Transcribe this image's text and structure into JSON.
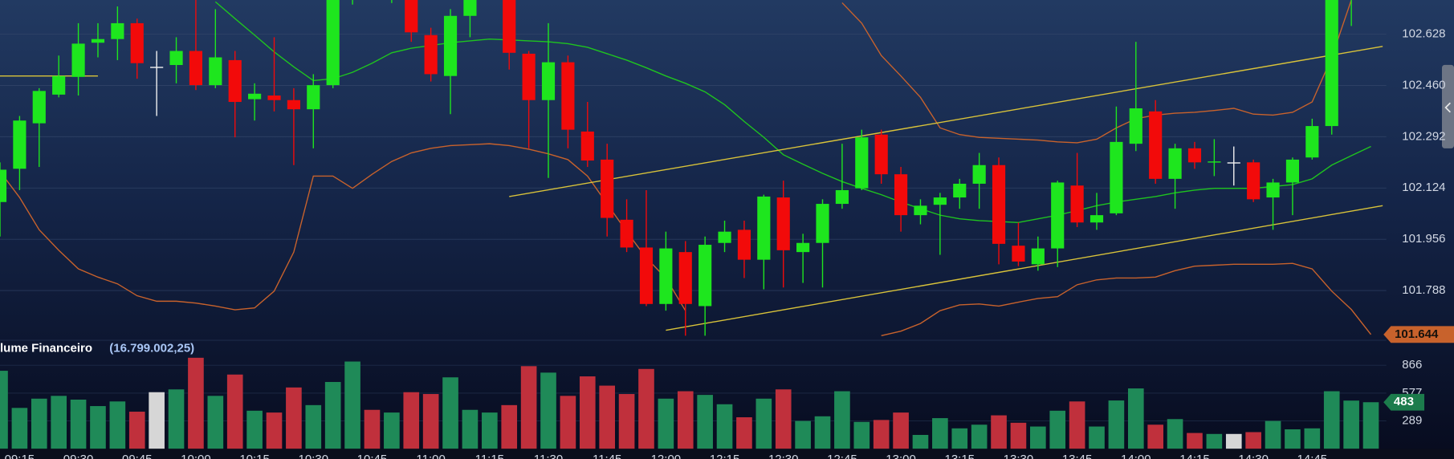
{
  "chart_data": {
    "type": "candlestick",
    "categories": [
      null,
      "09:15",
      null,
      null,
      "09:30",
      null,
      null,
      "09:45",
      null,
      null,
      "10:00",
      null,
      null,
      "10:15",
      null,
      null,
      "10:30",
      null,
      null,
      "10:45",
      null,
      null,
      "11:00",
      null,
      null,
      "11:15",
      null,
      null,
      "11:30",
      null,
      null,
      "11:45",
      null,
      null,
      "12:00",
      null,
      null,
      "12:15",
      null,
      null,
      "12:30",
      null,
      null,
      "12:45",
      null,
      null,
      "13:00",
      null,
      null,
      "13:15",
      null,
      null,
      "13:30",
      null,
      null,
      "13:45",
      null,
      null,
      "14:00",
      null,
      null,
      "14:15",
      null,
      null,
      "14:30",
      null,
      null,
      "14:45",
      null,
      null,
      null
    ],
    "open": [
      102.078,
      102.187,
      102.336,
      102.43,
      102.488,
      102.6,
      102.612,
      102.664,
      102.521,
      102.527,
      102.573,
      102.461,
      102.543,
      102.415,
      102.427,
      102.412,
      102.382,
      102.461,
      102.78,
      102.85,
      102.76,
      102.76,
      102.625,
      102.491,
      102.688,
      102.75,
      102.77,
      102.564,
      102.412,
      102.536,
      102.309,
      102.217,
      102.02,
      101.929,
      101.744,
      101.914,
      101.737,
      101.944,
      101.987,
      101.889,
      102.093,
      101.914,
      101.944,
      102.072,
      102.123,
      102.299,
      102.169,
      102.035,
      102.069,
      102.093,
      102.138,
      102.199,
      101.935,
      101.874,
      101.926,
      102.132,
      102.011,
      102.041,
      102.269,
      102.375,
      102.154,
      102.254,
      102.208,
      102.208,
      102.208,
      102.093,
      102.142,
      102.224,
      102.327,
      102.76,
      102.82
    ],
    "high": [
      102.208,
      102.36,
      102.451,
      102.558,
      102.664,
      102.664,
      102.719,
      102.679,
      102.573,
      102.618,
      102.74,
      102.71,
      102.573,
      102.467,
      102.618,
      102.451,
      102.497,
      102.8,
      102.86,
      102.88,
      102.83,
      102.79,
      102.649,
      102.71,
      102.78,
      102.82,
      102.8,
      102.573,
      102.664,
      102.558,
      102.406,
      102.269,
      102.087,
      102.117,
      101.981,
      101.95,
      101.965,
      102.017,
      102.017,
      102.102,
      102.148,
      101.974,
      102.087,
      102.269,
      102.315,
      102.315,
      102.193,
      102.087,
      102.108,
      102.154,
      102.239,
      102.224,
      102.011,
      101.965,
      102.148,
      102.239,
      102.108,
      102.391,
      102.603,
      102.412,
      102.269,
      102.275,
      102.284,
      102.26,
      102.217,
      102.154,
      102.224,
      102.351,
      102.78,
      102.86,
      102.9
    ],
    "low": [
      101.965,
      102.117,
      102.193,
      102.421,
      102.427,
      102.552,
      102.543,
      102.482,
      102.36,
      102.467,
      102.445,
      102.451,
      102.29,
      102.345,
      102.375,
      102.199,
      102.254,
      102.451,
      102.725,
      102.76,
      102.73,
      102.603,
      102.473,
      102.366,
      102.618,
      102.74,
      102.512,
      102.254,
      102.157,
      102.254,
      102.193,
      101.965,
      101.914,
      101.737,
      101.722,
      101.64,
      101.64,
      101.914,
      101.829,
      101.792,
      101.798,
      101.813,
      101.798,
      102.056,
      102.117,
      102.138,
      101.981,
      102.005,
      101.905,
      102.056,
      102.056,
      101.874,
      101.868,
      101.853,
      101.865,
      101.996,
      101.987,
      102.035,
      102.245,
      102.138,
      102.056,
      102.187,
      102.163,
      102.132,
      102.078,
      101.987,
      102.035,
      102.217,
      102.299,
      102.655,
      102.79
    ],
    "close": [
      102.184,
      102.345,
      102.442,
      102.491,
      102.597,
      102.612,
      102.664,
      102.533,
      102.521,
      102.573,
      102.461,
      102.552,
      102.406,
      102.433,
      102.412,
      102.382,
      102.461,
      102.78,
      102.84,
      102.79,
      102.8,
      102.634,
      102.497,
      102.688,
      102.75,
      102.79,
      102.567,
      102.412,
      102.536,
      102.315,
      102.214,
      102.026,
      101.929,
      101.744,
      101.926,
      101.744,
      101.938,
      101.981,
      101.889,
      102.096,
      101.92,
      101.944,
      102.072,
      102.117,
      102.29,
      102.169,
      102.035,
      102.066,
      102.093,
      102.138,
      102.199,
      101.941,
      101.883,
      101.926,
      102.142,
      102.011,
      102.035,
      102.275,
      102.385,
      102.154,
      102.254,
      102.208,
      102.211,
      102.208,
      102.087,
      102.142,
      102.217,
      102.327,
      102.76,
      102.82,
      102.87
    ],
    "up_color": "#1ee61e",
    "down_color": "#f20a0a",
    "doji_color": "#f2f2f2",
    "ylim": [
      101.631,
      102.74
    ],
    "yticks": [
      102.628,
      {
        "value": 102.46,
        "label": "102.460"
      },
      102.292,
      102.124,
      101.956,
      101.788
    ],
    "grid": true,
    "overlays": [
      {
        "color": "#1fc41f",
        "values": [
          null,
          null,
          null,
          null,
          null,
          null,
          null,
          null,
          null,
          null,
          null,
          102.734,
          102.679,
          102.625,
          102.57,
          102.521,
          102.476,
          102.482,
          102.503,
          102.533,
          102.567,
          102.582,
          102.591,
          102.6,
          102.606,
          102.612,
          102.609,
          102.606,
          102.603,
          102.597,
          102.585,
          102.564,
          102.543,
          102.518,
          102.491,
          102.467,
          102.439,
          102.397,
          102.342,
          102.29,
          102.233,
          102.202,
          102.172,
          102.145,
          102.123,
          102.102,
          102.078,
          102.056,
          102.035,
          102.023,
          102.017,
          102.014,
          102.011,
          102.023,
          102.035,
          102.05,
          102.066,
          102.078,
          102.087,
          102.096,
          102.108,
          102.117,
          102.123,
          102.123,
          102.123,
          102.129,
          102.135,
          102.154,
          102.199,
          102.23,
          102.26
        ]
      },
      {
        "color": "#c8622c",
        "values": [
          null,
          null,
          null,
          null,
          null,
          null,
          null,
          null,
          null,
          null,
          null,
          null,
          null,
          null,
          null,
          null,
          null,
          null,
          null,
          null,
          null,
          null,
          null,
          null,
          null,
          null,
          null,
          null,
          null,
          null,
          null,
          null,
          null,
          null,
          null,
          null,
          null,
          null,
          null,
          null,
          null,
          null,
          null,
          102.731,
          102.664,
          102.558,
          102.491,
          102.421,
          102.321,
          102.299,
          102.29,
          102.287,
          102.284,
          102.281,
          102.275,
          102.272,
          102.284,
          102.321,
          102.351,
          102.363,
          102.369,
          102.372,
          102.378,
          102.385,
          102.366,
          102.363,
          102.372,
          102.406,
          102.552,
          102.74,
          null
        ]
      },
      {
        "color": "#c8622c",
        "values": [
          102.178,
          102.093,
          101.987,
          101.92,
          101.859,
          101.832,
          101.81,
          101.771,
          101.753,
          101.753,
          101.747,
          101.737,
          101.725,
          101.731,
          101.786,
          101.914,
          102.163,
          102.163,
          102.123,
          102.169,
          102.211,
          102.239,
          102.254,
          102.263,
          102.266,
          102.269,
          102.263,
          102.251,
          102.236,
          102.217,
          102.163,
          102.072,
          101.981,
          101.895,
          101.829,
          101.722,
          null,
          null,
          null,
          null,
          null,
          null,
          null,
          null,
          null,
          101.64,
          101.655,
          101.68,
          101.722,
          101.741,
          101.744,
          101.737,
          101.75,
          101.762,
          101.768,
          101.807,
          101.823,
          101.829,
          101.829,
          101.832,
          101.853,
          101.868,
          101.871,
          101.874,
          101.874,
          101.874,
          101.877,
          101.859,
          101.786,
          101.726,
          101.644
        ]
      }
    ],
    "trendlines": [
      {
        "color": "#d9c33a",
        "x": [
          26,
          70.6
        ],
        "values": [
          102.096,
          102.588
        ]
      },
      {
        "color": "#d9c33a",
        "x": [
          34,
          70.6
        ],
        "values": [
          101.658,
          102.066
        ]
      },
      {
        "color": "#d9c33a",
        "x": [
          0,
          5
        ],
        "values": [
          102.491,
          102.491
        ]
      }
    ],
    "volume": {
      "title": "lume Financeiro",
      "total": "(16.799.002,25)",
      "up_color": "#1f8a58",
      "down_color": "#c0303c",
      "doji_color": "#d6d6d6",
      "values": [
        809,
        424,
        520,
        549,
        510,
        443,
        491,
        385,
        587,
        616,
        944,
        549,
        770,
        395,
        376,
        636,
        453,
        693,
        905,
        404,
        376,
        587,
        568,
        741,
        404,
        376,
        453,
        857,
        790,
        549,
        751,
        655,
        568,
        828,
        520,
        597,
        559,
        462,
        327,
        520,
        616,
        289,
        337,
        597,
        279,
        299,
        376,
        144,
        318,
        212,
        250,
        347,
        270,
        231,
        395,
        491,
        231,
        501,
        626,
        250,
        308,
        164,
        154,
        154,
        173,
        289,
        202,
        212,
        597,
        500,
        483
      ],
      "ylim": [
        0,
        1000
      ],
      "yticks": [
        866,
        577,
        289
      ]
    }
  }
}
